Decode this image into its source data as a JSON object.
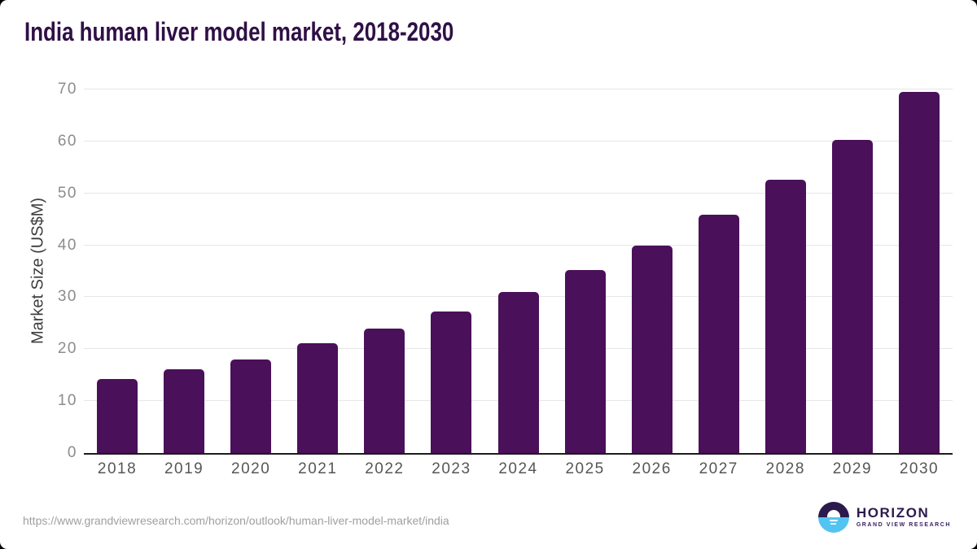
{
  "chart_data": {
    "type": "bar",
    "title": "India human liver model market, 2018-2030",
    "categories": [
      "2018",
      "2019",
      "2020",
      "2021",
      "2022",
      "2023",
      "2024",
      "2025",
      "2026",
      "2027",
      "2028",
      "2029",
      "2030"
    ],
    "values": [
      14.3,
      16.2,
      18.0,
      21.2,
      24.0,
      27.2,
      31.0,
      35.2,
      40.0,
      45.9,
      52.6,
      60.3,
      69.6
    ],
    "xlabel": "",
    "ylabel": "Market Size (US$M)",
    "ylim": [
      0,
      70
    ],
    "yticks": [
      0,
      10,
      20,
      30,
      40,
      50,
      60,
      70
    ],
    "grid": true,
    "legend_position": "none",
    "bar_color": "#4a1059"
  },
  "footer": {
    "source_url": "https://www.grandviewresearch.com/horizon/outlook/human-liver-model-market/india",
    "logo": {
      "name": "HORIZON",
      "subtitle": "GRAND VIEW RESEARCH",
      "icon": "horizon-sun-circle-icon"
    }
  },
  "colors": {
    "title": "#2f1046",
    "bar": "#4a1059",
    "grid": "#e6e6e6",
    "axis": "#1c1c1c",
    "y_tick": "#8c8c8c",
    "x_label": "#565656",
    "axis_title": "#3d3d3d",
    "url": "#9f9f9f",
    "logo_purple": "#2c1a4d",
    "logo_blue": "#53c4f1",
    "logo_sub": "#3a2163"
  }
}
